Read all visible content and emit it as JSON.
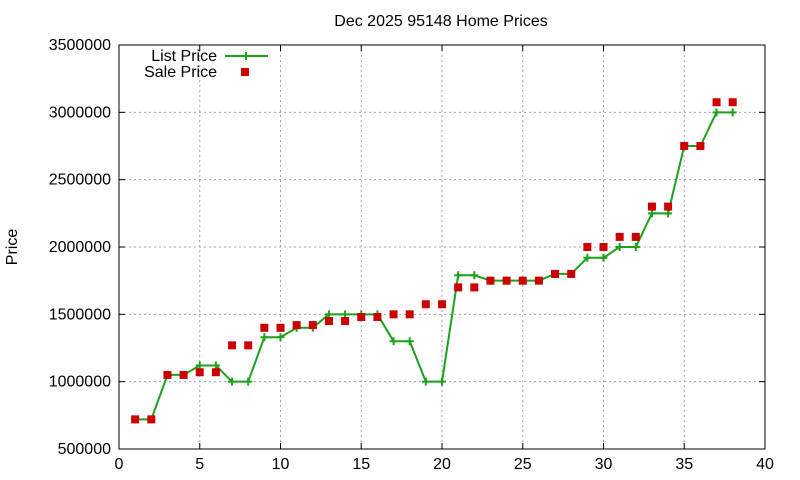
{
  "chart_data": {
    "type": "line",
    "title": "Dec 2025 95148 Home Prices",
    "xlabel": "",
    "ylabel": "Price",
    "xlim": [
      0,
      40
    ],
    "ylim": [
      500000,
      3500000
    ],
    "x_ticks": [
      0,
      5,
      10,
      15,
      20,
      25,
      30,
      35,
      40
    ],
    "y_ticks": [
      500000,
      1000000,
      1500000,
      2000000,
      2500000,
      3000000,
      3500000
    ],
    "grid": true,
    "legend_position": "top-left",
    "series": [
      {
        "name": "List Price",
        "style": "line-with-plus",
        "color": "#1aa31a",
        "x": [
          1,
          2,
          3,
          4,
          5,
          6,
          7,
          8,
          9,
          10,
          11,
          12,
          13,
          14,
          15,
          16,
          17,
          18,
          19,
          20,
          21,
          22,
          23,
          24,
          25,
          26,
          27,
          28,
          29,
          30,
          31,
          32,
          33,
          34,
          35,
          36,
          37,
          38
        ],
        "values": [
          720000,
          720000,
          1050000,
          1050000,
          1120000,
          1120000,
          1000000,
          1000000,
          1330000,
          1330000,
          1400000,
          1400000,
          1500000,
          1500000,
          1500000,
          1500000,
          1300000,
          1300000,
          1000000,
          1000000,
          1790000,
          1790000,
          1750000,
          1750000,
          1750000,
          1750000,
          1800000,
          1800000,
          1920000,
          1920000,
          2000000,
          2000000,
          2250000,
          2250000,
          2750000,
          2750000,
          3000000,
          3000000
        ]
      },
      {
        "name": "Sale Price",
        "style": "square-markers",
        "color": "#cc0000",
        "x": [
          1,
          2,
          3,
          4,
          5,
          6,
          7,
          8,
          9,
          10,
          11,
          12,
          13,
          14,
          15,
          16,
          17,
          18,
          19,
          20,
          21,
          22,
          23,
          24,
          25,
          26,
          27,
          28,
          29,
          30,
          31,
          32,
          33,
          34,
          35,
          36,
          37,
          38
        ],
        "values": [
          720000,
          720000,
          1050000,
          1050000,
          1070000,
          1070000,
          1270000,
          1270000,
          1400000,
          1400000,
          1420000,
          1420000,
          1450000,
          1450000,
          1480000,
          1480000,
          1500000,
          1500000,
          1575000,
          1575000,
          1700000,
          1700000,
          1750000,
          1750000,
          1750000,
          1750000,
          1800000,
          1800000,
          2000000,
          2000000,
          2075000,
          2075000,
          2300000,
          2300000,
          2750000,
          2750000,
          3075000,
          3075000
        ]
      }
    ]
  }
}
